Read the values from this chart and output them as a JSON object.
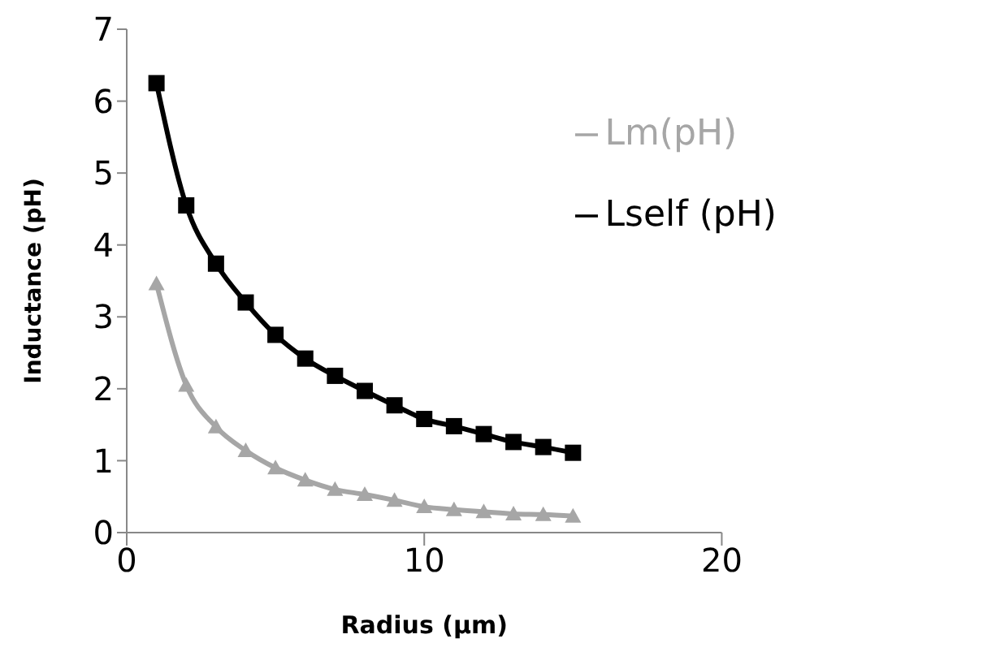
{
  "chart_data": {
    "type": "line",
    "xlabel": "Radius (µm)",
    "ylabel": "Inductance (pH)",
    "x": [
      1,
      2,
      3,
      4,
      5,
      6,
      7,
      8,
      9,
      10,
      11,
      12,
      13,
      14,
      15
    ],
    "series": [
      {
        "name": "Lself (pH)",
        "color": "#000000",
        "marker": "square",
        "values": [
          6.25,
          4.55,
          3.74,
          3.2,
          2.75,
          2.42,
          2.18,
          1.97,
          1.77,
          1.58,
          1.48,
          1.37,
          1.26,
          1.19,
          1.11
        ]
      },
      {
        "name": "Lm(pH)",
        "color": "#a6a6a6",
        "marker": "triangle",
        "values": [
          3.46,
          2.05,
          1.47,
          1.14,
          0.9,
          0.73,
          0.6,
          0.53,
          0.45,
          0.36,
          0.32,
          0.29,
          0.26,
          0.25,
          0.23
        ]
      }
    ],
    "xlim": [
      0,
      20
    ],
    "xticks": [
      0,
      10,
      20
    ],
    "ylim": [
      0,
      7
    ],
    "yticks": [
      0,
      1,
      2,
      3,
      4,
      5,
      6,
      7
    ],
    "grid": false,
    "legend": "top right"
  }
}
